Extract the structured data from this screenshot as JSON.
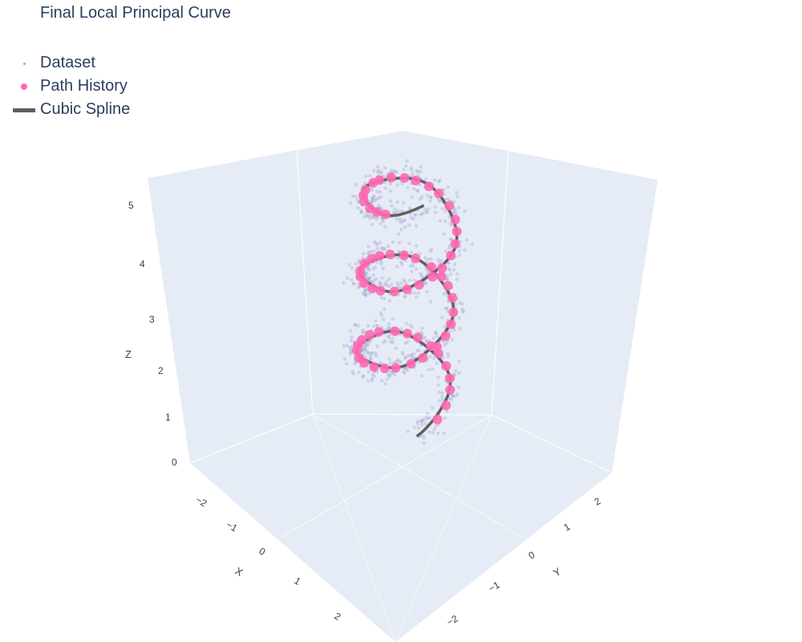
{
  "title": "Final Local Principal Curve",
  "legend": [
    {
      "name": "Dataset",
      "marker": "small-dot",
      "color": "#a0a3cc"
    },
    {
      "name": "Path History",
      "marker": "dot",
      "color": "#ff69b4"
    },
    {
      "name": "Cubic Spline",
      "marker": "line",
      "color": "#5f5f5f"
    }
  ],
  "chart_data": {
    "type": "scatter3d",
    "title": "Final Local Principal Curve",
    "axes": {
      "x": {
        "label": "X",
        "ticks": [
          "−2",
          "−1",
          "0",
          "1",
          "2"
        ],
        "range": [
          -2.5,
          2.5
        ]
      },
      "y": {
        "label": "Y",
        "ticks": [
          "−2",
          "−1",
          "0",
          "1",
          "2"
        ],
        "range": [
          -2.5,
          2.5
        ]
      },
      "z": {
        "label": "Z",
        "ticks": [
          "0",
          "1",
          "2",
          "3",
          "4",
          "5"
        ],
        "range": [
          0,
          5
        ]
      }
    },
    "scene_background": "#e5ecf6",
    "helix": {
      "radius": 1.5,
      "turns": 3,
      "z_range": [
        0.4,
        4.5
      ],
      "noise": 0.25
    },
    "series": [
      {
        "name": "Dataset",
        "mode": "markers",
        "color": "#a0a3cc",
        "count": 900,
        "opacity": 0.35
      },
      {
        "name": "Path History",
        "mode": "markers",
        "color": "#ff69b4"
      },
      {
        "name": "Cubic Spline",
        "mode": "lines",
        "color": "#5f5f5f"
      }
    ]
  }
}
